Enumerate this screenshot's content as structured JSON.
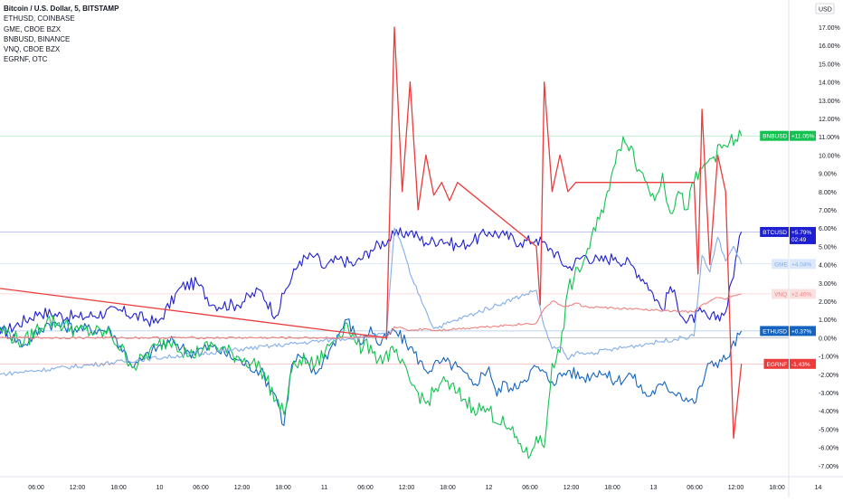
{
  "chart_data": {
    "type": "line",
    "legend": {
      "placement": "top-left",
      "title": "Bitcoin / U.S. Dollar, 5, BITSTAMP",
      "items": [
        "ETHUSD, COINBASE",
        "GME, CBOE BZX",
        "BNBUSD, BINANCE",
        "VNQ, CBOE BZX",
        "EGRNF, OTC"
      ]
    },
    "y_axis": {
      "unit_label": "USD",
      "ticks": [
        "17.00%",
        "16.00%",
        "15.00%",
        "14.00%",
        "13.00%",
        "12.00%",
        "11.00%",
        "10.00%",
        "9.00%",
        "8.00%",
        "7.00%",
        "6.00%",
        "5.00%",
        "4.00%",
        "3.00%",
        "2.00%",
        "1.00%",
        "0.00%",
        "-1.00%",
        "-2.00%",
        "-3.00%",
        "-4.00%",
        "-5.00%",
        "-6.00%",
        "-7.00%"
      ],
      "ylim": [
        -7.5,
        17.5
      ],
      "position": "right"
    },
    "x_axis": {
      "ticks": [
        "06:00",
        "12:00",
        "18:00",
        "10",
        "06:00",
        "12:00",
        "18:00",
        "11",
        "06:00",
        "12:00",
        "18:00",
        "12",
        "06:00",
        "12:00",
        "18:00",
        "13",
        "06:00",
        "12:00",
        "18:00",
        "14"
      ],
      "xlim": [
        0,
        100
      ]
    },
    "grid": false,
    "baseline": 0.0,
    "series": [
      {
        "name": "BTCUSD",
        "color": "#1e1ed2",
        "label": "+5.79%",
        "extra_label": "02:49",
        "last": 5.79,
        "x": [
          0,
          5,
          10,
          15,
          20,
          23,
          25,
          27,
          30,
          33,
          35,
          36,
          38,
          40,
          41,
          43,
          45,
          47,
          50,
          52,
          54,
          56,
          58,
          60,
          62,
          64,
          66,
          68,
          70,
          72,
          74,
          76,
          78,
          80,
          82,
          84,
          85,
          87,
          89,
          90,
          92,
          94
        ],
        "y": [
          0.2,
          1.4,
          1.1,
          1.5,
          0.8,
          2.8,
          3.0,
          1.8,
          1.8,
          2.6,
          1.2,
          2.4,
          4.2,
          4.5,
          3.8,
          4.3,
          4.0,
          4.8,
          5.6,
          5.8,
          5.2,
          5.4,
          5.0,
          5.3,
          5.8,
          5.6,
          5.2,
          5.4,
          4.8,
          3.8,
          4.5,
          4.2,
          4.4,
          4.0,
          3.0,
          1.5,
          2.8,
          0.8,
          1.4,
          1.0,
          1.4,
          5.79
        ]
      },
      {
        "name": "ETHUSD",
        "color": "#1565c0",
        "label": "+0.37%",
        "last": 0.37,
        "x": [
          0,
          3,
          6,
          10,
          14,
          17,
          20,
          22,
          24,
          27,
          30,
          33,
          35,
          36,
          37,
          38,
          40,
          42,
          44,
          45,
          46,
          47,
          48,
          50,
          52,
          54,
          56,
          58,
          60,
          62,
          63,
          64,
          65,
          66,
          68,
          70,
          72,
          74,
          76,
          78,
          80,
          82,
          84,
          86,
          88,
          90,
          92,
          94
        ],
        "y": [
          0.6,
          -0.4,
          0.8,
          0.5,
          0.4,
          -1.6,
          -0.5,
          -0.2,
          -0.8,
          -0.5,
          -1.2,
          -1.8,
          -3.2,
          -4.8,
          -1.5,
          -1.0,
          -2.0,
          -0.5,
          1.0,
          0.2,
          -0.3,
          0.6,
          -0.4,
          0.4,
          -0.5,
          -1.8,
          -1.3,
          -1.6,
          -2.6,
          -1.6,
          -3.2,
          -2.4,
          -2.9,
          -2.4,
          -1.6,
          -2.4,
          -1.8,
          -2.2,
          -1.8,
          -2.4,
          -2.0,
          -3.2,
          -2.6,
          -3.0,
          -3.6,
          -1.4,
          -1.2,
          0.37
        ]
      },
      {
        "name": "BNBUSD",
        "color": "#12c250",
        "label": "+11.05%",
        "last": 11.05,
        "x": [
          0,
          3,
          6,
          10,
          14,
          17,
          20,
          22,
          24,
          27,
          30,
          33,
          35,
          36,
          37,
          38,
          40,
          42,
          44,
          45,
          46,
          47,
          48,
          50,
          52,
          54,
          56,
          58,
          60,
          62,
          64,
          66,
          67,
          68,
          69,
          70,
          71,
          72,
          74,
          76,
          77,
          78,
          79,
          80,
          81,
          82,
          83,
          84,
          85,
          86,
          87,
          88,
          90,
          92,
          94
        ],
        "y": [
          0.5,
          -0.3,
          1.0,
          0.4,
          0.2,
          -1.6,
          -0.4,
          -0.1,
          -1.0,
          -0.4,
          -1.0,
          -1.6,
          -3.4,
          -4.2,
          -1.8,
          -1.2,
          -1.5,
          -0.3,
          0.8,
          -0.2,
          -0.6,
          -0.4,
          -1.2,
          -0.8,
          -2.4,
          -3.6,
          -2.4,
          -3.0,
          -3.8,
          -4.0,
          -4.8,
          -5.8,
          -6.6,
          -5.4,
          -6.0,
          -1.4,
          -0.8,
          2.6,
          4.2,
          6.5,
          8.0,
          9.5,
          11.0,
          10.5,
          9.2,
          8.5,
          7.5,
          9.0,
          6.8,
          8.0,
          7.0,
          8.5,
          9.8,
          10.5,
          11.05
        ]
      },
      {
        "name": "GME",
        "color": "#83aeea",
        "label": "+4.04%",
        "last": 4.04,
        "x": [
          0,
          49,
          50,
          51,
          52,
          54,
          55,
          68,
          69,
          70,
          71,
          72,
          73,
          74,
          88,
          89,
          90,
          91,
          92,
          93,
          94
        ],
        "y": [
          -2.0,
          0.2,
          6.0,
          5.0,
          3.5,
          1.5,
          0.5,
          2.6,
          0.6,
          -0.6,
          -0.5,
          -1.2,
          -0.8,
          -0.9,
          0.1,
          4.5,
          3.6,
          5.5,
          4.2,
          5.0,
          4.04
        ]
      },
      {
        "name": "VNQ",
        "color": "#f08080",
        "label": "+2.40%",
        "last": 2.4,
        "x": [
          0,
          49,
          50,
          52,
          54,
          55,
          68,
          69,
          70,
          71,
          72,
          73,
          74,
          88,
          89,
          90,
          91,
          92,
          93,
          94
        ],
        "y": [
          0.0,
          0.0,
          0.6,
          0.4,
          0.5,
          0.4,
          0.8,
          1.6,
          2.0,
          1.8,
          1.7,
          1.9,
          1.7,
          1.4,
          1.8,
          2.0,
          2.2,
          2.1,
          2.3,
          2.4
        ]
      },
      {
        "name": "EGRNF",
        "color": "#ec3b3b",
        "label": "-1.43%",
        "last": -1.43,
        "x": [
          0,
          49,
          50,
          51,
          52,
          53,
          54,
          55,
          56,
          57,
          58,
          68,
          68.5,
          69,
          70,
          71,
          72,
          73,
          88,
          88.5,
          89,
          90,
          91,
          92,
          93,
          94
        ],
        "y": [
          2.7,
          0.0,
          17.0,
          8.0,
          14.0,
          7.0,
          10.0,
          7.8,
          8.5,
          7.5,
          8.5,
          5.0,
          1.8,
          14.0,
          8.0,
          10.0,
          8.0,
          8.5,
          8.5,
          3.5,
          12.5,
          4.0,
          10.0,
          8.0,
          -5.5,
          -1.43
        ]
      }
    ]
  }
}
